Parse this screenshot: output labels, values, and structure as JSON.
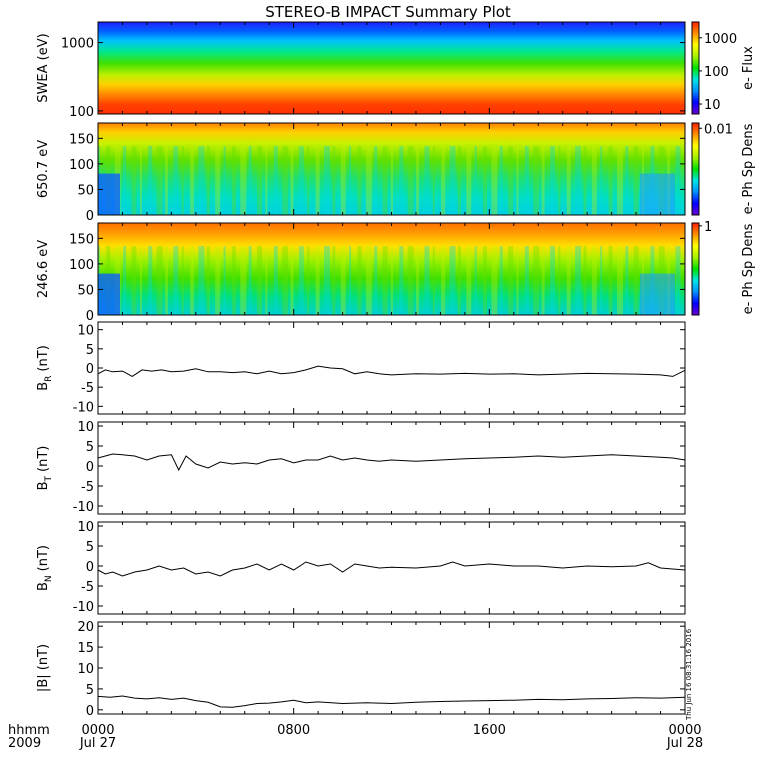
{
  "title": "STEREO-B IMPACT Summary Plot",
  "stamp": "Thu Jun 16 08:31:16 2016",
  "x_axis": {
    "unit_label": "hhmm",
    "year_label": "2009",
    "ticks": [
      {
        "time": "0000",
        "date": "Jul 27",
        "hour": 0
      },
      {
        "time": "0800",
        "date": "",
        "hour": 8
      },
      {
        "time": "1600",
        "date": "",
        "hour": 16
      },
      {
        "time": "0000",
        "date": "Jul 28",
        "hour": 24
      }
    ]
  },
  "colors": {
    "colormap": [
      "#6e00d0",
      "#0000ff",
      "#0090ff",
      "#00e6e6",
      "#00e000",
      "#a8f000",
      "#ffff00",
      "#ff9000",
      "#ff2000"
    ]
  },
  "chart_data": [
    {
      "type": "heatmap",
      "ylabel": "SWEA (eV)",
      "yscale": "log",
      "ylim": [
        90,
        2000
      ],
      "yticks": [
        "1000",
        "100"
      ],
      "ytick_values": [
        1000,
        100
      ],
      "colorbar": {
        "label": "e- Flux",
        "scale": "log",
        "ticks": [
          "1000",
          "100",
          "10"
        ],
        "tick_values": [
          1000,
          100,
          10
        ],
        "range": [
          5,
          3000
        ]
      }
    },
    {
      "type": "heatmap",
      "ylabel": "650.7 eV",
      "ylim": [
        0,
        180
      ],
      "yticks": [
        "150",
        "100",
        "50",
        "0"
      ],
      "ytick_values": [
        150,
        100,
        50,
        0
      ],
      "colorbar": {
        "label": "e- Ph Sp Dens",
        "ticks": [
          "0.01"
        ],
        "tick_values": [
          0.01
        ],
        "range": [
          0.0005,
          0.012
        ]
      }
    },
    {
      "type": "heatmap",
      "ylabel": "246.6 eV",
      "ylim": [
        0,
        180
      ],
      "yticks": [
        "150",
        "100",
        "50",
        "0"
      ],
      "ytick_values": [
        150,
        100,
        50,
        0
      ],
      "colorbar": {
        "label": "e- Ph Sp Dens",
        "ticks": [
          "1"
        ],
        "tick_values": [
          1
        ],
        "range": [
          0.05,
          1.1
        ]
      }
    },
    {
      "type": "line",
      "ylabel": "B",
      "ylabel_sub": "R",
      "ylabel_unit": "(nT)",
      "ylim": [
        -12,
        12
      ],
      "yticks": [
        "10",
        "5",
        "0",
        "-5",
        "-10"
      ],
      "ytick_values": [
        10,
        5,
        0,
        -5,
        -10
      ],
      "x": [
        0,
        0.3,
        0.6,
        1,
        1.4,
        1.8,
        2.2,
        2.6,
        3,
        3.5,
        4,
        4.5,
        5,
        5.5,
        6,
        6.5,
        7,
        7.5,
        8,
        8.5,
        9,
        9.5,
        10,
        10.5,
        11,
        11.5,
        12,
        13,
        14,
        15,
        16,
        17,
        18,
        19,
        20,
        21,
        22,
        23,
        23.5,
        24
      ],
      "values": [
        -1.5,
        -0.5,
        -1,
        -0.8,
        -2.2,
        -0.5,
        -0.8,
        -0.5,
        -1,
        -0.8,
        -0.2,
        -1,
        -1,
        -1.2,
        -1,
        -1.5,
        -0.8,
        -1.5,
        -1.2,
        -0.5,
        0.5,
        0,
        -0.2,
        -1.5,
        -1,
        -1.5,
        -1.8,
        -1.5,
        -1.6,
        -1.4,
        -1.6,
        -1.5,
        -1.8,
        -1.6,
        -1.4,
        -1.5,
        -1.6,
        -1.8,
        -2.2,
        -0.6
      ]
    },
    {
      "type": "line",
      "ylabel": "B",
      "ylabel_sub": "T",
      "ylabel_unit": "(nT)",
      "ylim": [
        -12,
        11
      ],
      "yticks": [
        "10",
        "5",
        "0",
        "-5",
        "-10"
      ],
      "ytick_values": [
        10,
        5,
        0,
        -5,
        -10
      ],
      "x": [
        0,
        0.3,
        0.6,
        1,
        1.5,
        2,
        2.5,
        3,
        3.3,
        3.6,
        4,
        4.5,
        5,
        5.5,
        6,
        6.5,
        7,
        7.5,
        8,
        8.5,
        9,
        9.5,
        10,
        10.5,
        11,
        11.5,
        12,
        13,
        14,
        15,
        16,
        17,
        18,
        19,
        20,
        21,
        22,
        23,
        23.5,
        24
      ],
      "values": [
        2,
        2.5,
        3,
        2.8,
        2.5,
        1.5,
        2.5,
        2.8,
        -1,
        2.5,
        0.5,
        -0.5,
        1,
        0.5,
        0.8,
        0.5,
        1.5,
        1.8,
        0.8,
        1.5,
        1.5,
        2.5,
        1.5,
        2,
        1.5,
        1.2,
        1.5,
        1.2,
        1.5,
        1.8,
        2,
        2.2,
        2.5,
        2.2,
        2.5,
        2.8,
        2.5,
        2.2,
        2,
        1.5
      ]
    },
    {
      "type": "line",
      "ylabel": "B",
      "ylabel_sub": "N",
      "ylabel_unit": "(nT)",
      "ylim": [
        -12,
        11
      ],
      "yticks": [
        "10",
        "5",
        "0",
        "-5",
        "-10"
      ],
      "ytick_values": [
        10,
        5,
        0,
        -5,
        -10
      ],
      "x": [
        0,
        0.3,
        0.6,
        1,
        1.5,
        2,
        2.5,
        3,
        3.5,
        4,
        4.5,
        5,
        5.5,
        6,
        6.5,
        7,
        7.5,
        8,
        8.5,
        9,
        9.5,
        10,
        10.5,
        11,
        11.5,
        12,
        13,
        14,
        14.5,
        15,
        16,
        17,
        18,
        19,
        20,
        21,
        22,
        22.5,
        23,
        24
      ],
      "values": [
        -1,
        -2,
        -1.5,
        -2.5,
        -1.5,
        -1,
        0,
        -1,
        -0.5,
        -2,
        -1.5,
        -2.5,
        -1,
        -0.5,
        0.5,
        -1,
        0.5,
        -1,
        1,
        0,
        0.5,
        -1.5,
        0.5,
        0,
        -0.5,
        -0.3,
        -0.5,
        0,
        1,
        0,
        0.5,
        0,
        0,
        -0.5,
        0,
        -0.2,
        0,
        0.8,
        -0.5,
        -1
      ]
    },
    {
      "type": "line",
      "ylabel": "|B| (nT)",
      "ylim": [
        -1,
        21
      ],
      "yticks": [
        "20",
        "15",
        "10",
        "5",
        "0"
      ],
      "ytick_values": [
        20,
        15,
        10,
        5,
        0
      ],
      "x": [
        0,
        0.5,
        1,
        1.5,
        2,
        2.5,
        3,
        3.5,
        4,
        4.5,
        5,
        5.5,
        6,
        6.5,
        7,
        7.5,
        8,
        8.5,
        9,
        10,
        11,
        12,
        13,
        14,
        15,
        16,
        17,
        18,
        19,
        20,
        21,
        22,
        23,
        24
      ],
      "values": [
        3.2,
        3,
        3.3,
        2.8,
        2.6,
        2.9,
        2.5,
        2.8,
        2.2,
        1.8,
        0.7,
        0.6,
        1.0,
        1.5,
        1.6,
        1.9,
        2.3,
        1.7,
        1.9,
        1.5,
        1.7,
        1.5,
        1.8,
        2.0,
        2.1,
        2.2,
        2.3,
        2.5,
        2.4,
        2.6,
        2.7,
        2.9,
        2.8,
        3.0
      ]
    }
  ]
}
